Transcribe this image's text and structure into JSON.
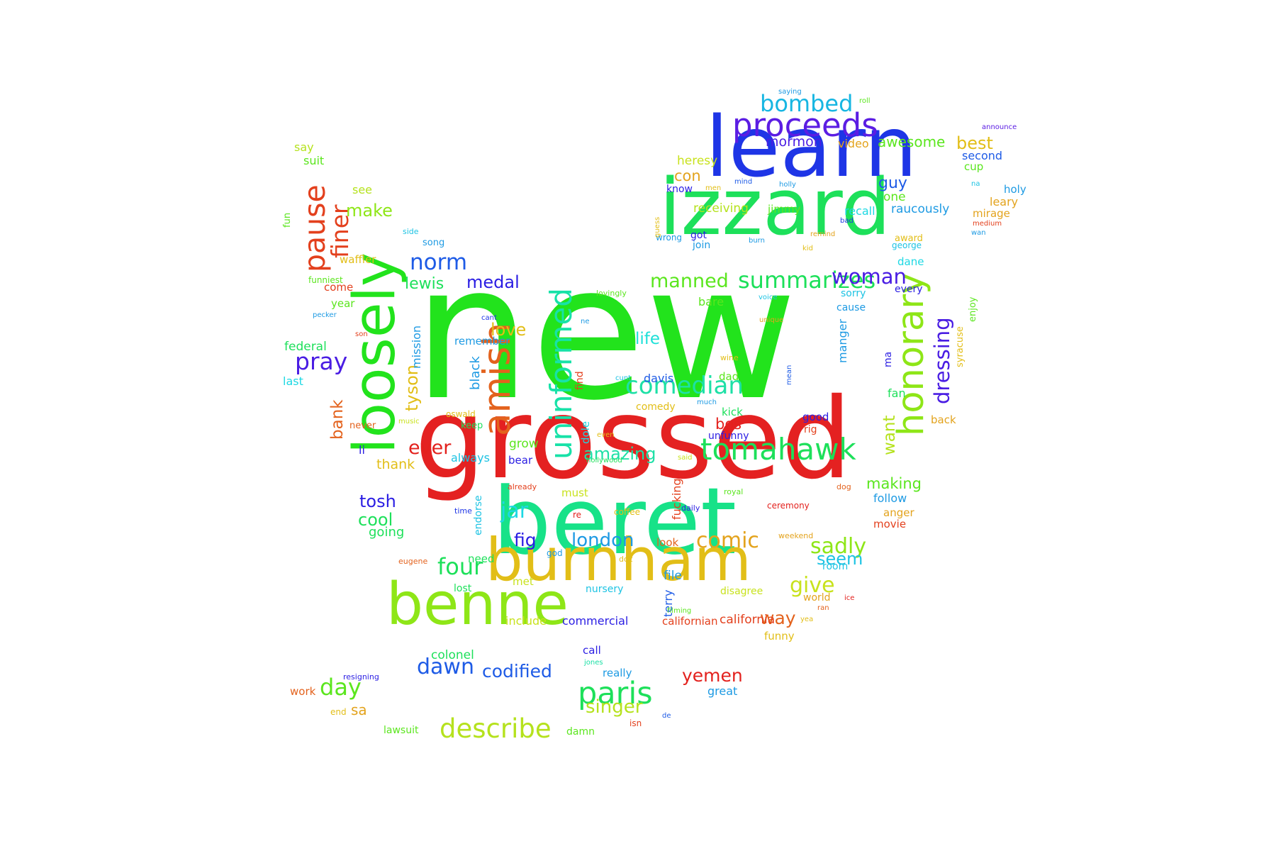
{
  "word_cloud": {
    "words": [
      {
        "text": "new",
        "color": "#22e31c"
      },
      {
        "text": "grossed",
        "color": "#e42121"
      },
      {
        "text": "beret",
        "color": "#17e288"
      },
      {
        "text": "izzard",
        "color": "#1de05a"
      },
      {
        "text": "learn",
        "color": "#1e35e6"
      },
      {
        "text": "burnham",
        "color": "#e2be17"
      },
      {
        "text": "benne",
        "color": "#8ee617"
      },
      {
        "text": "loosely",
        "color": "#22e31c"
      },
      {
        "text": "proceeds",
        "color": "#5b1de3"
      },
      {
        "text": "honorary",
        "color": "#8ee617"
      },
      {
        "text": "amish",
        "color": "#e3621d"
      },
      {
        "text": "uninformed",
        "color": "#17e2a8"
      },
      {
        "text": "tomahawk",
        "color": "#1de05a"
      },
      {
        "text": "pause",
        "color": "#e3401d"
      },
      {
        "text": "comedian",
        "color": "#1de0a6"
      },
      {
        "text": "paris",
        "color": "#1de05a"
      },
      {
        "text": "summarizes",
        "color": "#1de05a"
      },
      {
        "text": "bombed",
        "color": "#17b6e2"
      },
      {
        "text": "norm",
        "color": "#1e5be6"
      },
      {
        "text": "pray",
        "color": "#4a1de3"
      },
      {
        "text": "woman",
        "color": "#4a1de3"
      },
      {
        "text": "dressing",
        "color": "#4a1de3"
      },
      {
        "text": "describe",
        "color": "#b5e21d"
      },
      {
        "text": "dawn",
        "color": "#1e5be6"
      },
      {
        "text": "sadly",
        "color": "#8ee617"
      },
      {
        "text": "finer",
        "color": "#e3401d"
      },
      {
        "text": "manned",
        "color": "#5be61e"
      },
      {
        "text": "day",
        "color": "#5be61e"
      },
      {
        "text": "four",
        "color": "#1de05a"
      },
      {
        "text": "comic",
        "color": "#e3a31d"
      },
      {
        "text": "london",
        "color": "#1d9ae3"
      },
      {
        "text": "codified",
        "color": "#1e5be6"
      },
      {
        "text": "singer",
        "color": "#b5e21d"
      },
      {
        "text": "give",
        "color": "#c8e21d"
      },
      {
        "text": "jar",
        "color": "#1dd8e3"
      },
      {
        "text": "fig",
        "color": "#2a1de3"
      },
      {
        "text": "yemen",
        "color": "#e3211d"
      },
      {
        "text": "tyson",
        "color": "#e2be17"
      },
      {
        "text": "want",
        "color": "#b5e21d"
      },
      {
        "text": "ever",
        "color": "#e3211d"
      },
      {
        "text": "medal",
        "color": "#2a1de3"
      },
      {
        "text": "lewis",
        "color": "#1de05a"
      },
      {
        "text": "make",
        "color": "#8ee617"
      },
      {
        "text": "best",
        "color": "#e2be17"
      },
      {
        "text": "guy",
        "color": "#1e5be6"
      },
      {
        "text": "life",
        "color": "#1de0d8"
      },
      {
        "text": "love",
        "color": "#e2be17"
      },
      {
        "text": "amazing",
        "color": "#1de0a6"
      },
      {
        "text": "way",
        "color": "#e3621d"
      },
      {
        "text": "seem",
        "color": "#1dc3e3"
      },
      {
        "text": "making",
        "color": "#5be61e"
      },
      {
        "text": "tosh",
        "color": "#2a1de3"
      },
      {
        "text": "cool",
        "color": "#1de05a"
      },
      {
        "text": "bank",
        "color": "#e3621d"
      },
      {
        "text": "awesome",
        "color": "#5be61e"
      },
      {
        "text": "mormon",
        "color": "#4a1de3"
      },
      {
        "text": "con",
        "color": "#e3a31d"
      },
      {
        "text": "bos",
        "color": "#e3211d"
      },
      {
        "text": "raucously",
        "color": "#1d9ae3"
      },
      {
        "text": "california",
        "color": "#e3401d"
      },
      {
        "text": "terry",
        "color": "#1e5be6"
      },
      {
        "text": "grow",
        "color": "#5be61e"
      },
      {
        "text": "black",
        "color": "#1d9ae3"
      },
      {
        "text": "mission",
        "color": "#1d9ae3"
      },
      {
        "text": "thank",
        "color": "#e2be17"
      },
      {
        "text": "going",
        "color": "#1de05a"
      },
      {
        "text": "remember",
        "color": "#1d9ae3"
      },
      {
        "text": "federal",
        "color": "#1de05a"
      },
      {
        "text": "last",
        "color": "#1dd8e3"
      },
      {
        "text": "year",
        "color": "#5be61e"
      },
      {
        "text": "come",
        "color": "#e3401d"
      },
      {
        "text": "waffler",
        "color": "#e2be17"
      },
      {
        "text": "funniest",
        "color": "#5be61e"
      },
      {
        "text": "song",
        "color": "#1d9ae3"
      },
      {
        "text": "side",
        "color": "#1dc3e3"
      },
      {
        "text": "fun",
        "color": "#5be61e"
      },
      {
        "text": "see",
        "color": "#b5e21d"
      },
      {
        "text": "suit",
        "color": "#5be61e"
      },
      {
        "text": "say",
        "color": "#b5e21d"
      },
      {
        "text": "li",
        "color": "#2a1de3"
      },
      {
        "text": "never",
        "color": "#e3621d"
      },
      {
        "text": "music",
        "color": "#c8e21d"
      },
      {
        "text": "keep",
        "color": "#1de05a"
      },
      {
        "text": "oswald",
        "color": "#e2be17"
      },
      {
        "text": "always",
        "color": "#1dc3e3"
      },
      {
        "text": "bear",
        "color": "#2a1de3"
      },
      {
        "text": "hollywood",
        "color": "#1de05a"
      },
      {
        "text": "dole",
        "color": "#1dd8e3"
      },
      {
        "text": "find",
        "color": "#e3401d"
      },
      {
        "text": "ne",
        "color": "#1d9ae3"
      },
      {
        "text": "lovingly",
        "color": "#5be61e"
      },
      {
        "text": "cant",
        "color": "#1e35e6"
      },
      {
        "text": "son",
        "color": "#e3401d"
      },
      {
        "text": "pecker",
        "color": "#1d9ae3"
      },
      {
        "text": "davis",
        "color": "#1e5be6"
      },
      {
        "text": "comedy",
        "color": "#e2be17"
      },
      {
        "text": "dad",
        "color": "#5be61e"
      },
      {
        "text": "kick",
        "color": "#1de05a"
      },
      {
        "text": "unfunny",
        "color": "#2a1de3"
      },
      {
        "text": "bare",
        "color": "#5be61e"
      },
      {
        "text": "receiving",
        "color": "#b5e21d"
      },
      {
        "text": "jimmy",
        "color": "#5be61e"
      },
      {
        "text": "heresy",
        "color": "#c8e21d"
      },
      {
        "text": "know",
        "color": "#2a1de3"
      },
      {
        "text": "got",
        "color": "#2a1de3"
      },
      {
        "text": "join",
        "color": "#1d9ae3"
      },
      {
        "text": "wrong",
        "color": "#1d9ae3"
      },
      {
        "text": "recall",
        "color": "#1dd8e3"
      },
      {
        "text": "one",
        "color": "#5be61e"
      },
      {
        "text": "video",
        "color": "#e3a31d"
      },
      {
        "text": "second",
        "color": "#1e5be6"
      },
      {
        "text": "cup",
        "color": "#5be61e"
      },
      {
        "text": "leary",
        "color": "#e3a31d"
      },
      {
        "text": "mirage",
        "color": "#e3a31d"
      },
      {
        "text": "holy",
        "color": "#1d9ae3"
      },
      {
        "text": "award",
        "color": "#e2be17"
      },
      {
        "text": "dane",
        "color": "#1dd8e3"
      },
      {
        "text": "sorry",
        "color": "#1dc3e3"
      },
      {
        "text": "every",
        "color": "#2a1de3"
      },
      {
        "text": "cause",
        "color": "#1d9ae3"
      },
      {
        "text": "manger",
        "color": "#1d9ae3"
      },
      {
        "text": "ma",
        "color": "#2a1de3"
      },
      {
        "text": "fan",
        "color": "#1de05a"
      },
      {
        "text": "back",
        "color": "#e3a31d"
      },
      {
        "text": "syracuse",
        "color": "#e2be17"
      },
      {
        "text": "enjoy",
        "color": "#5be61e"
      },
      {
        "text": "good",
        "color": "#2a1de3"
      },
      {
        "text": "rig",
        "color": "#e3401d"
      },
      {
        "text": "george",
        "color": "#1dc3e3"
      },
      {
        "text": "follow",
        "color": "#1d9ae3"
      },
      {
        "text": "anger",
        "color": "#e3a31d"
      },
      {
        "text": "movie",
        "color": "#e3401d"
      },
      {
        "text": "room",
        "color": "#1dc3e3"
      },
      {
        "text": "world",
        "color": "#e3a31d"
      },
      {
        "text": "disagree",
        "color": "#c8e21d"
      },
      {
        "text": "file",
        "color": "#1d9ae3"
      },
      {
        "text": "look",
        "color": "#e3621d"
      },
      {
        "text": "must",
        "color": "#c8e21d"
      },
      {
        "text": "fucking",
        "color": "#e3401d"
      },
      {
        "text": "endorse",
        "color": "#1dc3e3"
      },
      {
        "text": "nursery",
        "color": "#1dc3e3"
      },
      {
        "text": "met",
        "color": "#c8e21d"
      },
      {
        "text": "include",
        "color": "#c8e21d"
      },
      {
        "text": "commercial",
        "color": "#2a1de3"
      },
      {
        "text": "californian",
        "color": "#e3401d"
      },
      {
        "text": "colonel",
        "color": "#1de05a"
      },
      {
        "text": "call",
        "color": "#2a1de3"
      },
      {
        "text": "jones",
        "color": "#1de0a6"
      },
      {
        "text": "really",
        "color": "#1d9ae3"
      },
      {
        "text": "great",
        "color": "#1d9ae3"
      },
      {
        "text": "damn",
        "color": "#5be61e"
      },
      {
        "text": "lawsuit",
        "color": "#5be61e"
      },
      {
        "text": "isn",
        "color": "#e3401d"
      },
      {
        "text": "de",
        "color": "#1e5be6"
      },
      {
        "text": "funny",
        "color": "#e2be17"
      },
      {
        "text": "work",
        "color": "#e3621d"
      },
      {
        "text": "end",
        "color": "#e2be17"
      },
      {
        "text": "sa",
        "color": "#e3a31d"
      },
      {
        "text": "resigning",
        "color": "#2a1de3"
      },
      {
        "text": "need",
        "color": "#1de05a"
      },
      {
        "text": "lost",
        "color": "#1de05a"
      },
      {
        "text": "eugene",
        "color": "#e3621d"
      },
      {
        "text": "god",
        "color": "#1d9ae3"
      },
      {
        "text": "already",
        "color": "#e3401d"
      },
      {
        "text": "re",
        "color": "#e3211d"
      },
      {
        "text": "time",
        "color": "#1e35e6"
      },
      {
        "text": "coffee",
        "color": "#e2be17"
      },
      {
        "text": "daily",
        "color": "#2a1de3"
      },
      {
        "text": "royal",
        "color": "#5be61e"
      },
      {
        "text": "ceremony",
        "color": "#e3211d"
      },
      {
        "text": "dog",
        "color": "#e3621d"
      },
      {
        "text": "weekend",
        "color": "#e3a31d"
      },
      {
        "text": "doc",
        "color": "#e2be17"
      },
      {
        "text": "filming",
        "color": "#5be61e"
      },
      {
        "text": "yea",
        "color": "#e2be17"
      },
      {
        "text": "ran",
        "color": "#e3621d"
      },
      {
        "text": "ice",
        "color": "#e3211d"
      },
      {
        "text": "wine",
        "color": "#e2be17"
      },
      {
        "text": "cunt",
        "color": "#1dc3e3"
      },
      {
        "text": "much",
        "color": "#1d9ae3"
      },
      {
        "text": "said",
        "color": "#c8e21d"
      },
      {
        "text": "even",
        "color": "#e2be17"
      },
      {
        "text": "mean",
        "color": "#1e5be6"
      },
      {
        "text": "unique",
        "color": "#e3a31d"
      },
      {
        "text": "voice",
        "color": "#1dc3e3"
      },
      {
        "text": "saying",
        "color": "#1d9ae3"
      },
      {
        "text": "roll",
        "color": "#5be61e"
      },
      {
        "text": "announce",
        "color": "#5b1de3"
      },
      {
        "text": "mind",
        "color": "#1e5be6"
      },
      {
        "text": "men",
        "color": "#e2be17"
      },
      {
        "text": "holly",
        "color": "#1d9ae3"
      },
      {
        "text": "na",
        "color": "#1dc3e3"
      },
      {
        "text": "guess",
        "color": "#e2be17"
      },
      {
        "text": "burn",
        "color": "#1d9ae3"
      },
      {
        "text": "kid",
        "color": "#e2be17"
      },
      {
        "text": "remind",
        "color": "#e3a31d"
      },
      {
        "text": "bad",
        "color": "#1e35e6"
      },
      {
        "text": "medium",
        "color": "#e3401d"
      },
      {
        "text": "wan",
        "color": "#1d9ae3"
      }
    ]
  }
}
